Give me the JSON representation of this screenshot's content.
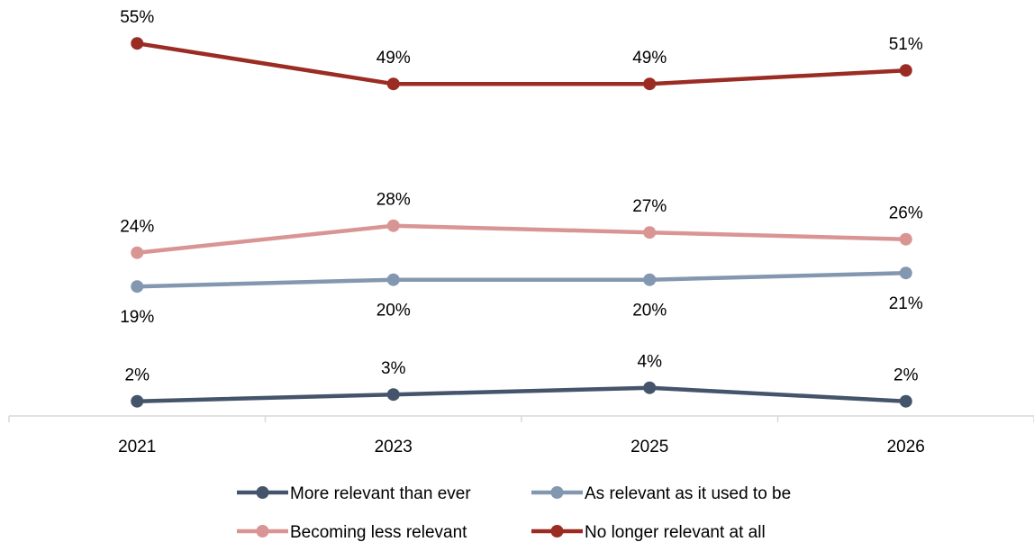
{
  "chart_data": {
    "type": "line",
    "title": "",
    "xlabel": "",
    "ylabel": "",
    "categories": [
      "2021",
      "2023",
      "2025",
      "2026"
    ],
    "ylim": [
      0,
      60
    ],
    "grid": false,
    "legend_position": "bottom",
    "value_suffix": "%",
    "series": [
      {
        "name": "More relevant than ever",
        "values": [
          2,
          3,
          4,
          2
        ],
        "color": "#44546a",
        "label_position": "above"
      },
      {
        "name": "As relevant as it used to be",
        "values": [
          19,
          20,
          20,
          21
        ],
        "color": "#8497b0",
        "label_position": "below"
      },
      {
        "name": "Becoming less relevant",
        "values": [
          24,
          28,
          27,
          26
        ],
        "color": "#d99594",
        "label_position": "above"
      },
      {
        "name": "No longer relevant at all",
        "values": [
          55,
          49,
          49,
          51
        ],
        "color": "#9b2c24",
        "label_position": "above"
      }
    ]
  }
}
